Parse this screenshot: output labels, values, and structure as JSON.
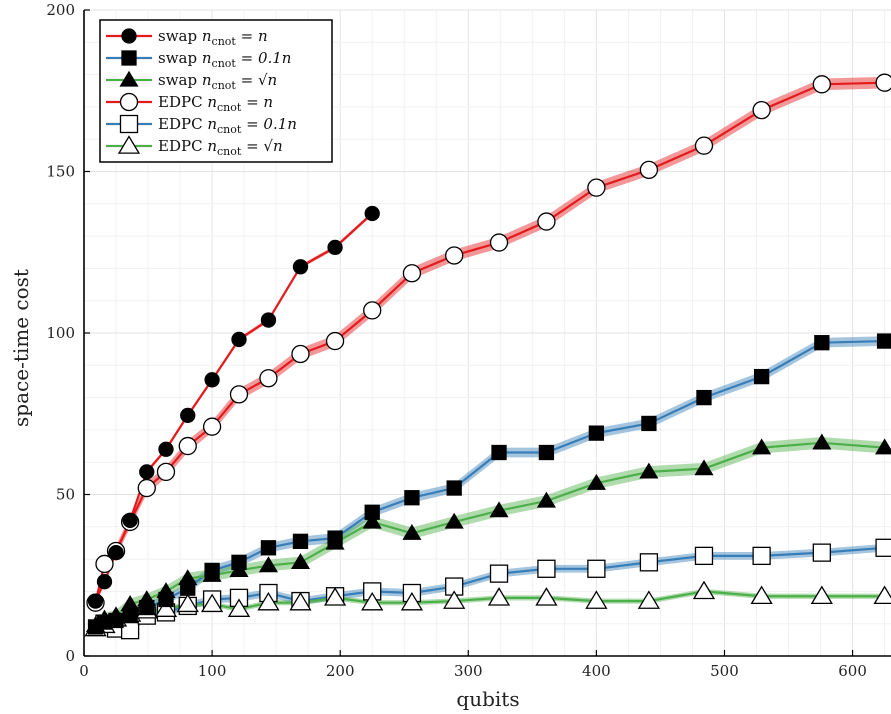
{
  "chart_data": {
    "type": "line",
    "xlabel": "qubits",
    "ylabel": "space-time cost",
    "xlim": [
      0,
      630
    ],
    "ylim": [
      0,
      200
    ],
    "xticks": [
      0,
      100,
      200,
      300,
      400,
      500,
      600
    ],
    "yticks": [
      0,
      50,
      100,
      150,
      200
    ],
    "grid": true,
    "legend_position": "top-left",
    "colors": {
      "red": "#e41a1c",
      "blue": "#377eb8",
      "green": "#4daf4a"
    },
    "series": [
      {
        "name": "swap n_cnot = n",
        "legend": {
          "prefix": "swap ",
          "rhs": "n"
        },
        "color": "red",
        "marker": "circle",
        "filled": true,
        "band": 0.6,
        "x": [
          9,
          16,
          25,
          36,
          49,
          64,
          81,
          100,
          121,
          144,
          169,
          196,
          225
        ],
        "y": [
          17,
          23,
          32,
          42,
          57,
          64,
          74.5,
          85.5,
          98,
          104,
          120.5,
          126.5,
          137
        ]
      },
      {
        "name": "swap n_cnot = 0.1n",
        "legend": {
          "prefix": "swap ",
          "rhs": "0.1n"
        },
        "color": "blue",
        "marker": "square",
        "filled": true,
        "band": 1.5,
        "x": [
          9,
          16,
          25,
          36,
          49,
          64,
          81,
          100,
          121,
          144,
          169,
          196,
          225,
          256,
          289,
          324,
          361,
          400,
          441,
          484,
          529,
          576,
          625
        ],
        "y": [
          9,
          10.5,
          11,
          12.5,
          15,
          17.5,
          21,
          26.5,
          29,
          33.5,
          35.5,
          36.5,
          44.5,
          49,
          52,
          63,
          63,
          69,
          72,
          80,
          86.5,
          97,
          97.5
        ]
      },
      {
        "name": "swap n_cnot = √n",
        "legend": {
          "prefix": "swap ",
          "rhs": "√n"
        },
        "color": "green",
        "marker": "triangle",
        "filled": true,
        "band": 1.8,
        "x": [
          9,
          16,
          25,
          36,
          49,
          64,
          81,
          100,
          121,
          144,
          169,
          196,
          225,
          256,
          289,
          324,
          361,
          400,
          441,
          484,
          529,
          576,
          625
        ],
        "y": [
          9.5,
          11.5,
          12.5,
          16,
          17.5,
          20,
          24,
          25,
          26.5,
          28,
          29,
          35,
          41.5,
          38,
          41.5,
          45,
          48,
          53.5,
          57,
          58,
          64.5,
          66,
          64.5
        ]
      },
      {
        "name": "EDPC n_cnot = n",
        "legend": {
          "prefix": "EDPC ",
          "rhs": "n"
        },
        "color": "red",
        "marker": "circle",
        "filled": false,
        "band": 1.8,
        "x": [
          9,
          16,
          25,
          36,
          49,
          64,
          81,
          100,
          121,
          144,
          169,
          196,
          225,
          256,
          289,
          324,
          361,
          400,
          441,
          484,
          529,
          576,
          625
        ],
        "y": [
          16.5,
          28.5,
          32.5,
          41.5,
          52,
          57,
          65,
          71,
          81,
          86,
          93.5,
          97.5,
          107,
          118.5,
          124,
          128,
          134.5,
          145,
          150.5,
          158,
          169,
          177,
          177.5
        ]
      },
      {
        "name": "EDPC n_cnot = 0.1n",
        "legend": {
          "prefix": "EDPC ",
          "rhs": "0.1n"
        },
        "color": "blue",
        "marker": "square",
        "filled": false,
        "band": 1.2,
        "x": [
          16,
          25,
          36,
          49,
          64,
          81,
          100,
          121,
          144,
          169,
          196,
          225,
          256,
          289,
          324,
          361,
          400,
          441,
          484,
          529,
          576,
          625
        ],
        "y": [
          10,
          8.5,
          8,
          12.5,
          13.5,
          15.5,
          17.5,
          18,
          19.5,
          17,
          18.5,
          20,
          19.5,
          21.5,
          25.5,
          27,
          27,
          29,
          31,
          31,
          32,
          33.5
        ]
      },
      {
        "name": "EDPC n_cnot = √n",
        "legend": {
          "prefix": "EDPC ",
          "rhs": "√n"
        },
        "color": "green",
        "marker": "triangle",
        "filled": false,
        "band": 0.8,
        "x": [
          9,
          16,
          25,
          36,
          49,
          64,
          81,
          100,
          121,
          144,
          169,
          196,
          225,
          256,
          289,
          324,
          361,
          400,
          441,
          484,
          529,
          576,
          625
        ],
        "y": [
          8.5,
          9.5,
          11.5,
          13,
          14,
          14.5,
          16,
          16,
          14.5,
          16.5,
          16.5,
          18,
          16.5,
          16.5,
          17,
          18,
          18,
          17,
          17,
          20,
          18.5,
          18.5,
          18.5
        ]
      }
    ]
  }
}
